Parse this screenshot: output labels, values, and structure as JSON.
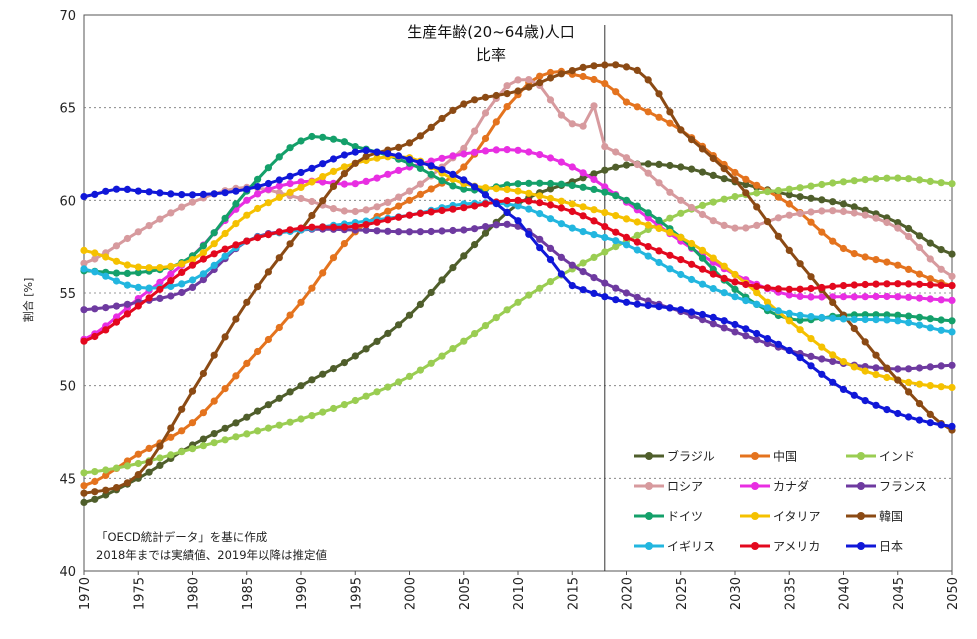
{
  "chart_data": {
    "type": "line",
    "title": "生産年齢(20~64歳)人口",
    "subtitle": "比率",
    "ylabel": "割合 [%]",
    "xlabel": "",
    "xlim": [
      1970,
      2050
    ],
    "ylim": [
      40,
      70
    ],
    "x_ticks": [
      "1970",
      "1975",
      "1980",
      "1985",
      "1990",
      "1995",
      "2000",
      "2005",
      "2010",
      "2015",
      "2020",
      "2025",
      "2030",
      "2035",
      "2040",
      "2045",
      "2050"
    ],
    "y_ticks": [
      "40",
      "45",
      "50",
      "55",
      "60",
      "65",
      "70"
    ],
    "grid": "horizontal dotted",
    "vline": 2018,
    "legend": "bottom-right",
    "notes": [
      "「OECD統計データ」を基に作成",
      "2018年までは実績値、2019年以降は推定値"
    ],
    "series": [
      {
        "name": "ブラジル",
        "color": "#4f5e2b",
        "points": [
          [
            1970,
            43.7
          ],
          [
            1975,
            45.0
          ],
          [
            1980,
            46.8
          ],
          [
            1985,
            48.3
          ],
          [
            1990,
            50.0
          ],
          [
            1995,
            51.6
          ],
          [
            2000,
            53.8
          ],
          [
            2005,
            57.0
          ],
          [
            2010,
            59.8
          ],
          [
            2015,
            61.0
          ],
          [
            2020,
            61.9
          ],
          [
            2025,
            61.8
          ],
          [
            2030,
            61.0
          ],
          [
            2035,
            60.3
          ],
          [
            2040,
            59.8
          ],
          [
            2045,
            58.8
          ],
          [
            2050,
            57.1
          ]
        ]
      },
      {
        "name": "中国",
        "color": "#e4731e",
        "points": [
          [
            1970,
            44.6
          ],
          [
            1975,
            46.3
          ],
          [
            1980,
            48.0
          ],
          [
            1985,
            51.2
          ],
          [
            1990,
            54.5
          ],
          [
            1995,
            58.3
          ],
          [
            2000,
            60.0
          ],
          [
            2005,
            61.8
          ],
          [
            2010,
            65.7
          ],
          [
            2013,
            66.9
          ],
          [
            2015,
            66.8
          ],
          [
            2018,
            66.3
          ],
          [
            2020,
            65.3
          ],
          [
            2025,
            63.8
          ],
          [
            2030,
            61.5
          ],
          [
            2035,
            59.8
          ],
          [
            2040,
            57.4
          ],
          [
            2045,
            56.5
          ],
          [
            2050,
            55.4
          ]
        ]
      },
      {
        "name": "インド",
        "color": "#9acd52",
        "points": [
          [
            1970,
            45.3
          ],
          [
            1975,
            45.8
          ],
          [
            1980,
            46.6
          ],
          [
            1985,
            47.4
          ],
          [
            1990,
            48.2
          ],
          [
            1995,
            49.2
          ],
          [
            2000,
            50.5
          ],
          [
            2005,
            52.4
          ],
          [
            2010,
            54.5
          ],
          [
            2015,
            56.3
          ],
          [
            2020,
            57.8
          ],
          [
            2025,
            59.3
          ],
          [
            2030,
            60.2
          ],
          [
            2035,
            60.6
          ],
          [
            2040,
            61.0
          ],
          [
            2045,
            61.2
          ],
          [
            2050,
            60.9
          ]
        ]
      },
      {
        "name": "ロシア",
        "color": "#d79a9e",
        "points": [
          [
            1970,
            56.6
          ],
          [
            1975,
            58.3
          ],
          [
            1980,
            59.9
          ],
          [
            1985,
            60.7
          ],
          [
            1990,
            60.1
          ],
          [
            1995,
            59.4
          ],
          [
            2000,
            60.5
          ],
          [
            2005,
            62.8
          ],
          [
            2008,
            65.5
          ],
          [
            2010,
            66.5
          ],
          [
            2012,
            66.2
          ],
          [
            2014,
            64.6
          ],
          [
            2016,
            64.0
          ],
          [
            2017,
            65.1
          ],
          [
            2018,
            62.9
          ],
          [
            2020,
            62.3
          ],
          [
            2025,
            60.0
          ],
          [
            2030,
            58.5
          ],
          [
            2035,
            59.2
          ],
          [
            2040,
            59.4
          ],
          [
            2045,
            58.5
          ],
          [
            2050,
            55.9
          ]
        ]
      },
      {
        "name": "カナダ",
        "color": "#e82ee2",
        "points": [
          [
            1970,
            52.5
          ],
          [
            1975,
            54.7
          ],
          [
            1980,
            57.0
          ],
          [
            1985,
            60.0
          ],
          [
            1990,
            61.0
          ],
          [
            1995,
            60.9
          ],
          [
            2000,
            61.8
          ],
          [
            2005,
            62.5
          ],
          [
            2010,
            62.7
          ],
          [
            2015,
            61.8
          ],
          [
            2020,
            59.9
          ],
          [
            2025,
            57.8
          ],
          [
            2030,
            56.0
          ],
          [
            2035,
            54.9
          ],
          [
            2040,
            54.8
          ],
          [
            2045,
            54.8
          ],
          [
            2050,
            54.6
          ]
        ]
      },
      {
        "name": "フランス",
        "color": "#6e3aa0",
        "points": [
          [
            1970,
            54.1
          ],
          [
            1975,
            54.5
          ],
          [
            1980,
            55.3
          ],
          [
            1985,
            57.8
          ],
          [
            1990,
            58.4
          ],
          [
            1995,
            58.4
          ],
          [
            2000,
            58.3
          ],
          [
            2005,
            58.4
          ],
          [
            2010,
            58.6
          ],
          [
            2015,
            56.5
          ],
          [
            2020,
            55.0
          ],
          [
            2025,
            54.0
          ],
          [
            2030,
            52.9
          ],
          [
            2035,
            51.9
          ],
          [
            2040,
            51.2
          ],
          [
            2045,
            50.9
          ],
          [
            2050,
            51.1
          ]
        ]
      },
      {
        "name": "ドイツ",
        "color": "#14a06a",
        "points": [
          [
            1970,
            56.2
          ],
          [
            1975,
            56.1
          ],
          [
            1980,
            57.0
          ],
          [
            1985,
            60.5
          ],
          [
            1990,
            63.2
          ],
          [
            1993,
            63.3
          ],
          [
            1995,
            62.9
          ],
          [
            2000,
            62.0
          ],
          [
            2005,
            60.6
          ],
          [
            2010,
            60.9
          ],
          [
            2015,
            60.8
          ],
          [
            2020,
            60.0
          ],
          [
            2025,
            58.0
          ],
          [
            2030,
            55.2
          ],
          [
            2035,
            53.6
          ],
          [
            2040,
            53.8
          ],
          [
            2045,
            53.8
          ],
          [
            2050,
            53.5
          ]
        ]
      },
      {
        "name": "イタリア",
        "color": "#f5c100",
        "points": [
          [
            1970,
            57.3
          ],
          [
            1975,
            56.4
          ],
          [
            1980,
            56.8
          ],
          [
            1985,
            59.2
          ],
          [
            1990,
            60.7
          ],
          [
            1995,
            62.0
          ],
          [
            2000,
            62.3
          ],
          [
            2005,
            60.9
          ],
          [
            2010,
            60.5
          ],
          [
            2015,
            59.8
          ],
          [
            2020,
            59.0
          ],
          [
            2025,
            58.0
          ],
          [
            2030,
            56.0
          ],
          [
            2035,
            53.5
          ],
          [
            2040,
            51.3
          ],
          [
            2045,
            50.3
          ],
          [
            2050,
            49.9
          ]
        ]
      },
      {
        "name": "韓国",
        "color": "#8b4a14",
        "points": [
          [
            1970,
            44.2
          ],
          [
            1975,
            45.2
          ],
          [
            1980,
            49.7
          ],
          [
            1985,
            54.5
          ],
          [
            1990,
            58.4
          ],
          [
            1995,
            62.0
          ],
          [
            2000,
            63.1
          ],
          [
            2005,
            65.2
          ],
          [
            2010,
            65.9
          ],
          [
            2015,
            67.0
          ],
          [
            2018,
            67.3
          ],
          [
            2020,
            67.2
          ],
          [
            2022,
            66.5
          ],
          [
            2025,
            63.8
          ],
          [
            2030,
            61.1
          ],
          [
            2035,
            57.3
          ],
          [
            2040,
            53.8
          ],
          [
            2045,
            50.3
          ],
          [
            2050,
            47.6
          ]
        ]
      },
      {
        "name": "イギリス",
        "color": "#22b6df",
        "points": [
          [
            1970,
            56.3
          ],
          [
            1975,
            55.3
          ],
          [
            1980,
            55.7
          ],
          [
            1985,
            57.8
          ],
          [
            1990,
            58.4
          ],
          [
            1995,
            58.8
          ],
          [
            2000,
            59.2
          ],
          [
            2005,
            59.8
          ],
          [
            2010,
            59.7
          ],
          [
            2015,
            58.5
          ],
          [
            2020,
            57.6
          ],
          [
            2025,
            56.0
          ],
          [
            2030,
            54.8
          ],
          [
            2035,
            53.9
          ],
          [
            2040,
            53.6
          ],
          [
            2045,
            53.5
          ],
          [
            2050,
            52.9
          ]
        ]
      },
      {
        "name": "アメリカ",
        "color": "#e3081e",
        "points": [
          [
            1970,
            52.4
          ],
          [
            1975,
            54.3
          ],
          [
            1980,
            56.5
          ],
          [
            1985,
            57.8
          ],
          [
            1990,
            58.5
          ],
          [
            1995,
            58.6
          ],
          [
            2000,
            59.2
          ],
          [
            2005,
            59.6
          ],
          [
            2010,
            60.0
          ],
          [
            2015,
            59.4
          ],
          [
            2020,
            58.0
          ],
          [
            2025,
            56.8
          ],
          [
            2030,
            55.6
          ],
          [
            2035,
            55.2
          ],
          [
            2040,
            55.4
          ],
          [
            2045,
            55.5
          ],
          [
            2050,
            55.4
          ]
        ]
      },
      {
        "name": "日本",
        "color": "#1017d8",
        "points": [
          [
            1970,
            60.2
          ],
          [
            1973,
            60.6
          ],
          [
            1975,
            60.5
          ],
          [
            1980,
            60.3
          ],
          [
            1985,
            60.6
          ],
          [
            1990,
            61.5
          ],
          [
            1995,
            62.6
          ],
          [
            1997,
            62.6
          ],
          [
            2000,
            62.2
          ],
          [
            2005,
            61.1
          ],
          [
            2010,
            58.9
          ],
          [
            2013,
            56.8
          ],
          [
            2015,
            55.4
          ],
          [
            2020,
            54.5
          ],
          [
            2025,
            54.1
          ],
          [
            2030,
            53.3
          ],
          [
            2035,
            51.9
          ],
          [
            2040,
            49.8
          ],
          [
            2045,
            48.5
          ],
          [
            2050,
            47.8
          ]
        ]
      }
    ]
  }
}
